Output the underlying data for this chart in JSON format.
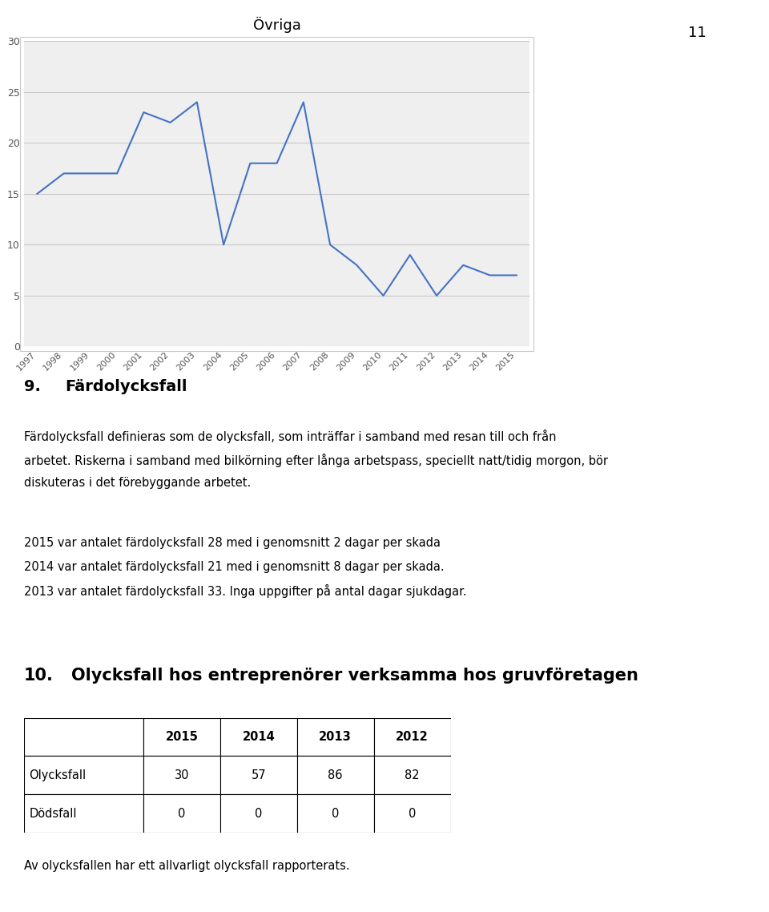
{
  "page_number": "11",
  "chart_title": "Övriga",
  "chart_years": [
    1997,
    1998,
    1999,
    2000,
    2001,
    2002,
    2003,
    2004,
    2005,
    2006,
    2007,
    2008,
    2009,
    2010,
    2011,
    2012,
    2013,
    2014,
    2015
  ],
  "chart_values": [
    15,
    17,
    17,
    17,
    23,
    22,
    24,
    10,
    18,
    18,
    24,
    10,
    8,
    5,
    9,
    5,
    8,
    7,
    7
  ],
  "chart_ylim": [
    0,
    30
  ],
  "chart_yticks": [
    0,
    5,
    10,
    15,
    20,
    25,
    30
  ],
  "line_color": "#4472C4",
  "grid_color": "#C8C8C8",
  "chart_bg": "#EFEFEF",
  "chart_border_color": "#C8C8C8",
  "section9_heading_num": "9.",
  "section9_heading_text": "Färdolycksfall",
  "section9_para1_line1": "Färdolycksfall definieras som de olycksfall, som inträffar i samband med resan till och från",
  "section9_para1_line2": "arbetet. Riskerna i samband med bilkörning efter långa arbetspass, speciellt natt/tidig morgon, bör",
  "section9_para1_line3": "diskuteras i det förebyggande arbetet.",
  "section9_para2_line1": "2015 var antalet färdolycksfall 28 med i genomsnitt 2 dagar per skada",
  "section9_para2_line2": "2014 var antalet färdolycksfall 21 med i genomsnitt 8 dagar per skada.",
  "section9_para2_line3": "2013 var antalet färdolycksfall 33. Inga uppgifter på antal dagar sjukdagar.",
  "section10_heading_num": "10.",
  "section10_heading_text": "Olycksfall hos entreprenörer verksamma hos gruvföretagen",
  "table_headers": [
    "",
    "2015",
    "2014",
    "2013",
    "2012"
  ],
  "table_row1": [
    "Olycksfall",
    "30",
    "57",
    "86",
    "82"
  ],
  "table_row2": [
    "Dödsfall",
    "0",
    "0",
    "0",
    "0"
  ],
  "section10_footer": "Av olycksfallen har ett allvarligt olycksfall rapporterats.",
  "text_color": "#000000",
  "table_border_color": "#000000"
}
